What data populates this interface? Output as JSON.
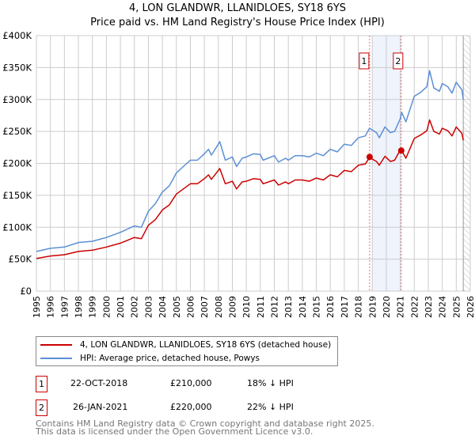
{
  "header": {
    "title": "4, LON GLANDWR, LLANIDLOES, SY18 6YS",
    "subtitle": "Price paid vs. HM Land Registry's House Price Index (HPI)"
  },
  "chart_data": {
    "type": "line",
    "title": "4, LON GLANDWR, LLANIDLOES, SY18 6YS",
    "subtitle": "Price paid vs. HM Land Registry's House Price Index (HPI)",
    "xlim": [
      1995,
      2026
    ],
    "ylim": [
      0,
      400000
    ],
    "x_ticks": [
      "1995",
      "1996",
      "1997",
      "1998",
      "1999",
      "2000",
      "2001",
      "2002",
      "2003",
      "2004",
      "2005",
      "2006",
      "2007",
      "2008",
      "2009",
      "2010",
      "2011",
      "2012",
      "2013",
      "2014",
      "2015",
      "2016",
      "2017",
      "2018",
      "2019",
      "2020",
      "2021",
      "2022",
      "2023",
      "2024",
      "2025",
      "2026"
    ],
    "y_ticks": [
      {
        "v": 0,
        "label": "£0"
      },
      {
        "v": 50000,
        "label": "£50K"
      },
      {
        "v": 100000,
        "label": "£100K"
      },
      {
        "v": 150000,
        "label": "£150K"
      },
      {
        "v": 200000,
        "label": "£200K"
      },
      {
        "v": 250000,
        "label": "£250K"
      },
      {
        "v": 300000,
        "label": "£300K"
      },
      {
        "v": 350000,
        "label": "£350K"
      },
      {
        "v": 400000,
        "label": "£400K"
      }
    ],
    "grid": true,
    "x": [
      1995,
      1996,
      1997,
      1998,
      1999,
      2000,
      2001,
      2002,
      2002.5,
      2003,
      2003.5,
      2004,
      2004.5,
      2005,
      2005.5,
      2006,
      2006.5,
      2007,
      2007.3,
      2007.5,
      2008,
      2008.1,
      2008.5,
      2009,
      2009.3,
      2009.7,
      2010,
      2010.5,
      2011,
      2011.2,
      2012,
      2012.3,
      2012.8,
      2013,
      2013.5,
      2014,
      2014.5,
      2015,
      2015.5,
      2016,
      2016.5,
      2017,
      2017.5,
      2018,
      2018.5,
      2018.8,
      2019.3,
      2019.5,
      2019.9,
      2020.3,
      2020.6,
      2021.0,
      2021.1,
      2021.4,
      2022,
      2022.5,
      2022.9,
      2023.1,
      2023.4,
      2023.8,
      2024,
      2024.4,
      2024.7,
      2025,
      2025.4,
      2025.5
    ],
    "series": [
      {
        "name": "4, LON GLANDWR, LLANIDLOES, SY18 6YS (detached house)",
        "color": "#cc0000",
        "values_k": [
          51,
          55,
          57,
          62,
          64,
          69,
          75,
          84,
          82,
          103,
          112,
          127,
          135,
          152,
          160,
          168,
          168,
          176,
          182,
          175,
          189,
          192,
          168,
          172,
          160,
          171,
          172,
          176,
          175,
          168,
          174,
          166,
          171,
          168,
          174,
          174,
          172,
          177,
          174,
          182,
          179,
          189,
          187,
          197,
          199,
          209,
          203,
          197,
          211,
          203,
          205,
          221,
          220,
          208,
          239,
          245,
          251,
          268,
          250,
          246,
          255,
          251,
          243,
          257,
          247,
          236
        ]
      },
      {
        "name": "HPI: Average price, detached house, Powys",
        "color": "#5b8fd6",
        "values_k": [
          62,
          67,
          69,
          76,
          78,
          84,
          92,
          102,
          100,
          125,
          137,
          155,
          165,
          185,
          195,
          205,
          205,
          215,
          222,
          213,
          230,
          234,
          205,
          210,
          195,
          208,
          210,
          215,
          214,
          205,
          212,
          202,
          208,
          205,
          212,
          212,
          210,
          216,
          212,
          222,
          218,
          230,
          228,
          240,
          243,
          255,
          248,
          240,
          257,
          248,
          250,
          270,
          280,
          265,
          305,
          312,
          320,
          345,
          318,
          313,
          325,
          320,
          310,
          327,
          315,
          300
        ]
      }
    ],
    "sales": [
      {
        "id": "1",
        "x": 2018.81,
        "value": 210000
      },
      {
        "id": "2",
        "x": 2021.07,
        "value": 220000
      }
    ],
    "shaded_range": [
      2019,
      2021.07
    ],
    "forecast_hatch_from": 2025.5,
    "legend": "bottom"
  },
  "transactions": [
    {
      "id": "1",
      "date": "22-OCT-2018",
      "price": "£210,000",
      "hpi": "18% ↓ HPI"
    },
    {
      "id": "2",
      "date": "26-JAN-2021",
      "price": "£220,000",
      "hpi": "22% ↓ HPI"
    }
  ],
  "footer": {
    "line1": "Contains HM Land Registry data © Crown copyright and database right 2025.",
    "line2": "This data is licensed under the Open Government Licence v3.0."
  }
}
